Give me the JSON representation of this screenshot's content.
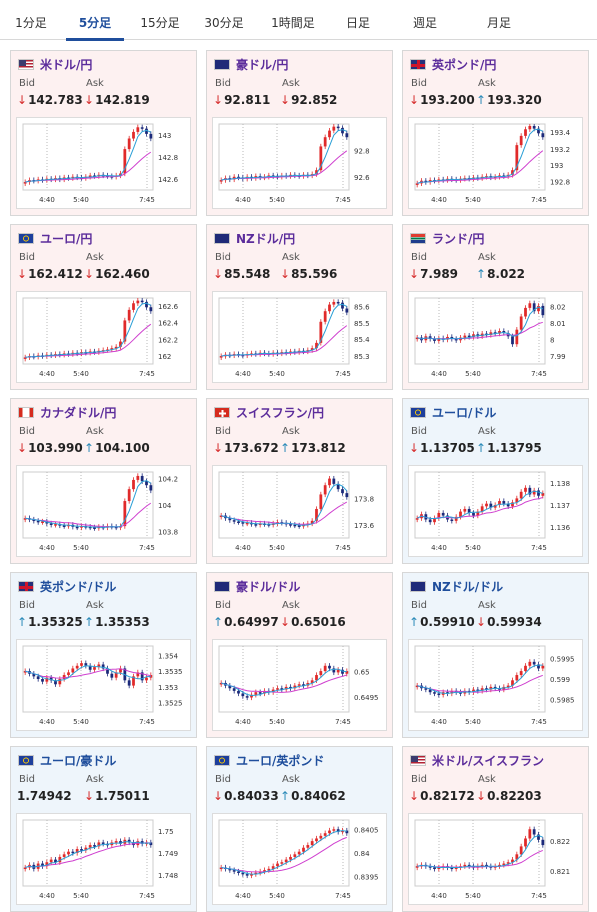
{
  "tabs": [
    {
      "label": "1分足",
      "active": false
    },
    {
      "label": "5分足",
      "active": true
    },
    {
      "label": "15分足",
      "active": false
    },
    {
      "label": "30分足",
      "active": false
    },
    {
      "label": "1時間足",
      "active": false
    },
    {
      "label": "日足",
      "active": false
    },
    {
      "label": "週足",
      "active": false
    },
    {
      "label": "月足",
      "active": false
    }
  ],
  "labels": {
    "bid": "Bid",
    "ask": "Ask"
  },
  "x_ticks": [
    "4:40",
    "5:40",
    "7:45"
  ],
  "colors": {
    "up_candle": "#e02a2a",
    "down_candle": "#1c2a7a",
    "fast_line": "#2a9fd6",
    "slow_line": "#cf3fcf",
    "bid_down": "#d62b2b",
    "ask_up": "#2a8ab8"
  },
  "cards": [
    {
      "pair": "米ドル/円",
      "flag": "us-jp",
      "theme": "pink",
      "bid": "142.783",
      "bid_dir": "down",
      "ask": "142.819",
      "ask_dir": "down",
      "chart_data": {
        "type": "candlestick",
        "y_ticks": [
          "143",
          "142.8",
          "142.6"
        ],
        "ylim": [
          142.5,
          143.1
        ],
        "shape": [
          0.12,
          0.15,
          0.14,
          0.16,
          0.15,
          0.17,
          0.16,
          0.18,
          0.16,
          0.19,
          0.18,
          0.2,
          0.19,
          0.18,
          0.2,
          0.22,
          0.21,
          0.23,
          0.22,
          0.21,
          0.2,
          0.22,
          0.25,
          0.62,
          0.78,
          0.88,
          0.95,
          0.93,
          0.85,
          0.78
        ]
      }
    },
    {
      "pair": "豪ドル/円",
      "flag": "au-jp",
      "theme": "pink",
      "bid": "92.811",
      "bid_dir": "down",
      "ask": "92.852",
      "ask_dir": "down",
      "chart_data": {
        "type": "candlestick",
        "y_ticks": [
          "92.8",
          "92.6"
        ],
        "ylim": [
          92.5,
          93.0
        ],
        "shape": [
          0.15,
          0.18,
          0.16,
          0.2,
          0.19,
          0.17,
          0.2,
          0.18,
          0.21,
          0.19,
          0.2,
          0.22,
          0.21,
          0.2,
          0.22,
          0.21,
          0.23,
          0.22,
          0.21,
          0.23,
          0.22,
          0.24,
          0.3,
          0.66,
          0.8,
          0.9,
          0.96,
          0.94,
          0.86,
          0.8
        ]
      }
    },
    {
      "pair": "英ポンド/円",
      "flag": "gb-jp",
      "theme": "pink",
      "bid": "193.200",
      "bid_dir": "down",
      "ask": "193.320",
      "ask_dir": "up",
      "chart_data": {
        "type": "candlestick",
        "y_ticks": [
          "193.4",
          "193.2",
          "193",
          "192.8"
        ],
        "ylim": [
          192.7,
          193.5
        ],
        "shape": [
          0.1,
          0.14,
          0.12,
          0.15,
          0.14,
          0.16,
          0.15,
          0.17,
          0.16,
          0.15,
          0.17,
          0.18,
          0.17,
          0.19,
          0.18,
          0.2,
          0.21,
          0.19,
          0.2,
          0.22,
          0.21,
          0.23,
          0.3,
          0.68,
          0.82,
          0.92,
          0.97,
          0.93,
          0.86,
          0.8
        ]
      }
    },
    {
      "pair": "ユーロ/円",
      "flag": "eu-jp",
      "theme": "pink",
      "bid": "162.412",
      "bid_dir": "down",
      "ask": "162.460",
      "ask_dir": "down",
      "chart_data": {
        "type": "candlestick",
        "y_ticks": [
          "162.6",
          "162.4",
          "162.2",
          "162"
        ],
        "ylim": [
          161.9,
          162.7
        ],
        "shape": [
          0.1,
          0.12,
          0.11,
          0.13,
          0.12,
          0.14,
          0.13,
          0.15,
          0.14,
          0.16,
          0.15,
          0.17,
          0.16,
          0.18,
          0.17,
          0.19,
          0.18,
          0.2,
          0.21,
          0.22,
          0.24,
          0.26,
          0.34,
          0.66,
          0.82,
          0.92,
          0.96,
          0.94,
          0.86,
          0.8
        ]
      }
    },
    {
      "pair": "NZドル/円",
      "flag": "nz-jp",
      "theme": "pink",
      "bid": "85.548",
      "bid_dir": "down",
      "ask": "85.596",
      "ask_dir": "down",
      "chart_data": {
        "type": "candlestick",
        "y_ticks": [
          "85.6",
          "85.5",
          "85.4",
          "85.3"
        ],
        "ylim": [
          85.25,
          85.65
        ],
        "shape": [
          0.12,
          0.14,
          0.13,
          0.15,
          0.14,
          0.13,
          0.15,
          0.16,
          0.15,
          0.17,
          0.16,
          0.15,
          0.17,
          0.16,
          0.18,
          0.17,
          0.19,
          0.18,
          0.2,
          0.19,
          0.21,
          0.24,
          0.32,
          0.64,
          0.8,
          0.9,
          0.94,
          0.93,
          0.84,
          0.78
        ]
      }
    },
    {
      "pair": "ランド/円",
      "flag": "za-jp",
      "theme": "pink",
      "bid": "7.989",
      "bid_dir": "down",
      "ask": "8.022",
      "ask_dir": "up",
      "chart_data": {
        "type": "candlestick",
        "y_ticks": [
          "8.02",
          "8.01",
          "8",
          "7.99"
        ],
        "ylim": [
          7.985,
          8.025
        ],
        "shape": [
          0.4,
          0.36,
          0.42,
          0.38,
          0.35,
          0.39,
          0.37,
          0.41,
          0.38,
          0.36,
          0.4,
          0.43,
          0.41,
          0.45,
          0.42,
          0.46,
          0.44,
          0.48,
          0.46,
          0.5,
          0.47,
          0.42,
          0.3,
          0.52,
          0.72,
          0.85,
          0.92,
          0.8,
          0.88,
          0.74
        ]
      }
    },
    {
      "pair": "カナダドル/円",
      "flag": "ca-jp",
      "theme": "pink",
      "bid": "103.990",
      "bid_dir": "down",
      "ask": "104.100",
      "ask_dir": "up",
      "chart_data": {
        "type": "candlestick",
        "y_ticks": [
          "104.2",
          "104",
          "103.8"
        ],
        "ylim": [
          103.75,
          104.25
        ],
        "shape": [
          0.3,
          0.28,
          0.26,
          0.24,
          0.25,
          0.22,
          0.2,
          0.21,
          0.19,
          0.18,
          0.2,
          0.17,
          0.16,
          0.18,
          0.17,
          0.16,
          0.15,
          0.17,
          0.16,
          0.18,
          0.17,
          0.16,
          0.18,
          0.56,
          0.74,
          0.88,
          0.94,
          0.86,
          0.8,
          0.72
        ]
      }
    },
    {
      "pair": "スイスフラン/円",
      "flag": "ch-jp",
      "theme": "pink",
      "bid": "173.672",
      "bid_dir": "down",
      "ask": "173.812",
      "ask_dir": "up",
      "chart_data": {
        "type": "candlestick",
        "y_ticks": [
          "173.8",
          "173.6"
        ],
        "ylim": [
          173.5,
          174.0
        ],
        "shape": [
          0.34,
          0.3,
          0.27,
          0.25,
          0.24,
          0.22,
          0.23,
          0.21,
          0.2,
          0.22,
          0.21,
          0.2,
          0.22,
          0.24,
          0.23,
          0.21,
          0.2,
          0.19,
          0.18,
          0.2,
          0.22,
          0.26,
          0.44,
          0.66,
          0.8,
          0.9,
          0.82,
          0.74,
          0.68,
          0.62
        ]
      }
    },
    {
      "pair": "ユーロ/ドル",
      "flag": "eu-us",
      "theme": "blue",
      "bid": "1.13705",
      "bid_dir": "down",
      "ask": "1.13795",
      "ask_dir": "up",
      "chart_data": {
        "type": "candlestick",
        "y_ticks": [
          "1.138",
          "1.137",
          "1.136"
        ],
        "ylim": [
          1.1355,
          1.1385
        ],
        "shape": [
          0.3,
          0.36,
          0.28,
          0.24,
          0.3,
          0.38,
          0.34,
          0.28,
          0.26,
          0.32,
          0.4,
          0.44,
          0.38,
          0.34,
          0.4,
          0.48,
          0.52,
          0.46,
          0.5,
          0.56,
          0.52,
          0.48,
          0.54,
          0.6,
          0.7,
          0.76,
          0.66,
          0.72,
          0.64,
          0.68
        ]
      }
    },
    {
      "pair": "英ポンド/ドル",
      "flag": "gb-us",
      "theme": "blue",
      "bid": "1.35325",
      "bid_dir": "up",
      "ask": "1.35353",
      "ask_dir": "up",
      "chart_data": {
        "type": "candlestick",
        "y_ticks": [
          "1.354",
          "1.3535",
          "1.353",
          "1.3525"
        ],
        "ylim": [
          1.3522,
          1.3543
        ],
        "shape": [
          0.62,
          0.58,
          0.54,
          0.5,
          0.46,
          0.52,
          0.48,
          0.42,
          0.5,
          0.56,
          0.6,
          0.66,
          0.7,
          0.74,
          0.7,
          0.64,
          0.68,
          0.72,
          0.66,
          0.58,
          0.52,
          0.6,
          0.66,
          0.48,
          0.4,
          0.54,
          0.6,
          0.48,
          0.52,
          0.56
        ]
      }
    },
    {
      "pair": "豪ドル/ドル",
      "flag": "au-us",
      "theme": "pink",
      "bid": "0.64997",
      "bid_dir": "up",
      "ask": "0.65016",
      "ask_dir": "down",
      "chart_data": {
        "type": "candlestick",
        "y_ticks": [
          "0.65",
          "0.6495"
        ],
        "ylim": [
          0.6492,
          0.6505
        ],
        "shape": [
          0.44,
          0.4,
          0.36,
          0.32,
          0.28,
          0.24,
          0.22,
          0.26,
          0.3,
          0.28,
          0.32,
          0.3,
          0.34,
          0.36,
          0.34,
          0.38,
          0.36,
          0.4,
          0.42,
          0.4,
          0.44,
          0.48,
          0.56,
          0.62,
          0.7,
          0.66,
          0.6,
          0.64,
          0.58,
          0.62
        ]
      }
    },
    {
      "pair": "NZドル/ドル",
      "flag": "nz-us",
      "theme": "blue",
      "bid": "0.59910",
      "bid_dir": "up",
      "ask": "0.59934",
      "ask_dir": "down",
      "chart_data": {
        "type": "candlestick",
        "y_ticks": [
          "0.5995",
          "0.599",
          "0.5985"
        ],
        "ylim": [
          0.5982,
          0.5998
        ],
        "shape": [
          0.4,
          0.36,
          0.34,
          0.3,
          0.28,
          0.26,
          0.3,
          0.28,
          0.32,
          0.3,
          0.28,
          0.32,
          0.3,
          0.34,
          0.32,
          0.36,
          0.34,
          0.38,
          0.36,
          0.34,
          0.38,
          0.4,
          0.48,
          0.56,
          0.62,
          0.7,
          0.76,
          0.72,
          0.66,
          0.7
        ]
      }
    },
    {
      "pair": "ユーロ/豪ドル",
      "flag": "eu-au",
      "theme": "blue",
      "bid": "1.74942",
      "bid_dir": "none",
      "ask": "1.75011",
      "ask_dir": "down",
      "chart_data": {
        "type": "candlestick",
        "y_ticks": [
          "1.75",
          "1.749",
          "1.748"
        ],
        "ylim": [
          1.7475,
          1.7505
        ],
        "shape": [
          0.28,
          0.32,
          0.26,
          0.34,
          0.3,
          0.36,
          0.4,
          0.36,
          0.44,
          0.48,
          0.52,
          0.5,
          0.56,
          0.54,
          0.58,
          0.62,
          0.6,
          0.66,
          0.64,
          0.62,
          0.66,
          0.68,
          0.64,
          0.7,
          0.66,
          0.62,
          0.68,
          0.64,
          0.66,
          0.62
        ]
      }
    },
    {
      "pair": "ユーロ/英ポンド",
      "flag": "eu-gb",
      "theme": "blue",
      "bid": "0.84033",
      "bid_dir": "down",
      "ask": "0.84062",
      "ask_dir": "up",
      "chart_data": {
        "type": "candlestick",
        "y_ticks": [
          "0.8405",
          "0.84",
          "0.8395"
        ],
        "ylim": [
          0.8393,
          0.8407
        ],
        "shape": [
          0.28,
          0.26,
          0.24,
          0.22,
          0.2,
          0.18,
          0.16,
          0.18,
          0.2,
          0.22,
          0.24,
          0.26,
          0.3,
          0.34,
          0.36,
          0.4,
          0.44,
          0.48,
          0.52,
          0.58,
          0.62,
          0.68,
          0.72,
          0.76,
          0.8,
          0.84,
          0.86,
          0.82,
          0.84,
          0.8
        ]
      }
    },
    {
      "pair": "米ドル/スイスフラン",
      "flag": "us-ch",
      "theme": "pink",
      "bid": "0.82172",
      "bid_dir": "down",
      "ask": "0.82203",
      "ask_dir": "down",
      "chart_data": {
        "type": "candlestick",
        "y_ticks": [
          "0.822",
          "0.821"
        ],
        "ylim": [
          0.8205,
          0.8227
        ],
        "shape": [
          0.3,
          0.32,
          0.3,
          0.28,
          0.26,
          0.28,
          0.3,
          0.28,
          0.26,
          0.28,
          0.3,
          0.32,
          0.3,
          0.28,
          0.3,
          0.32,
          0.3,
          0.28,
          0.3,
          0.32,
          0.34,
          0.36,
          0.4,
          0.48,
          0.6,
          0.72,
          0.86,
          0.78,
          0.7,
          0.62
        ]
      }
    }
  ]
}
